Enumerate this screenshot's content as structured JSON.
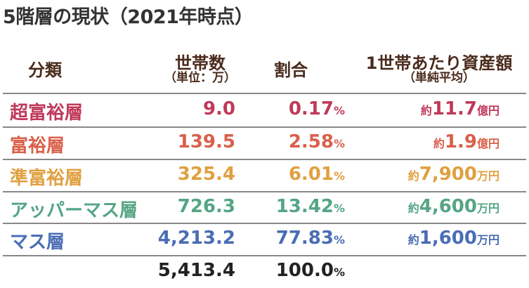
{
  "title": "5階層の現状（2021年時点）",
  "headers": {
    "category": "分類",
    "households": "世帯数",
    "households_unit": "（単位：万）",
    "share": "割合",
    "assets": "1世帯あたり資産額",
    "assets_note": "（単純平均）"
  },
  "rows": [
    {
      "category": "超富裕層",
      "households": "9.0",
      "share": "0.17",
      "assets_prefix": "約",
      "assets": "11.7",
      "assets_unit": "億円",
      "color": "#c0395a"
    },
    {
      "category": "富裕層",
      "households": "139.5",
      "share": "2.58",
      "assets_prefix": "約",
      "assets": "1.9",
      "assets_unit": "億円",
      "color": "#d9604a"
    },
    {
      "category": "準富裕層",
      "households": "325.4",
      "share": "6.01",
      "assets_prefix": "約",
      "assets": "7,900",
      "assets_unit": "万円",
      "color": "#e0a040"
    },
    {
      "category": "アッパーマス層",
      "households": "726.3",
      "share": "13.42",
      "assets_prefix": "約",
      "assets": "4,600",
      "assets_unit": "万円",
      "color": "#55a585"
    },
    {
      "category": "マス層",
      "households": "4,213.2",
      "share": "77.83",
      "assets_prefix": "約",
      "assets": "1,600",
      "assets_unit": "万円",
      "color": "#4a6db5"
    }
  ],
  "total": {
    "households": "5,413.4",
    "share": "100.0"
  },
  "percent_sign": "%"
}
